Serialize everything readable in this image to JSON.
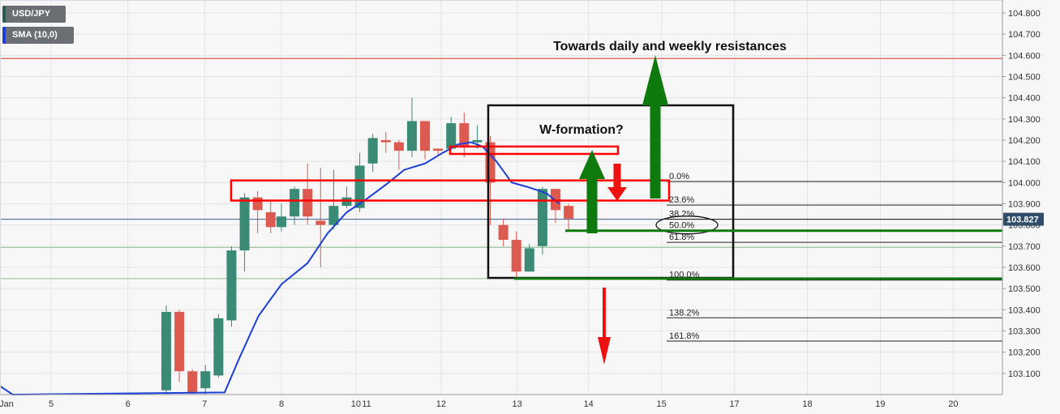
{
  "symbol": "USD/JPY",
  "indicator": "SMA (10,0)",
  "current_price": "103.827",
  "annotations": {
    "resistance_note": "Towards daily and weekly resistances",
    "pattern_note": "W-formation?"
  },
  "colors": {
    "bull": "#3a8a76",
    "bear": "#dc5a50",
    "sma": "#1b3fd6",
    "box_red": "#ff0000",
    "green_arrow": "#0e7a0e",
    "red_arrow": "#ee1111",
    "resistance_line": "#ee5555",
    "price_line": "#3a5a8a"
  },
  "chart_data": {
    "type": "candlestick",
    "title": "",
    "ylim": [
      103.01,
      104.87
    ],
    "y_ticks": [
      103.1,
      103.2,
      103.3,
      103.4,
      103.5,
      103.6,
      103.7,
      103.8,
      103.9,
      104.0,
      104.1,
      104.2,
      104.3,
      104.4,
      104.5,
      104.6,
      104.7,
      104.8
    ],
    "x_ticks": [
      {
        "label": "Jan",
        "day": 3.45
      },
      {
        "label": "5",
        "day": 5
      },
      {
        "label": "6",
        "day": 6
      },
      {
        "label": "7",
        "day": 7
      },
      {
        "label": "8",
        "day": 8
      },
      {
        "label": "10",
        "day": 8.97
      },
      {
        "label": "11",
        "day": 9.11
      },
      {
        "label": "12",
        "day": 10.08
      },
      {
        "label": "13",
        "day": 11.07
      },
      {
        "label": "14",
        "day": 12.0
      },
      {
        "label": "15",
        "day": 12.95
      },
      {
        "label": "17",
        "day": 13.9
      },
      {
        "label": "18",
        "day": 14.85
      },
      {
        "label": "19",
        "day": 15.8
      },
      {
        "label": "20",
        "day": 16.75
      }
    ],
    "candles": [
      {
        "t": 3.6,
        "o": 103.06,
        "h": 103.15,
        "l": 103.05,
        "c": 103.13
      },
      {
        "t": 3.77,
        "o": 103.13,
        "h": 103.18,
        "l": 103.06,
        "c": 103.12
      },
      {
        "t": 3.94,
        "o": 103.12,
        "h": 103.16,
        "l": 103.06,
        "c": 103.14
      },
      {
        "t": 4.12,
        "o": 103.14,
        "h": 103.17,
        "l": 103.0,
        "c": 103.02
      },
      {
        "t": 6.5,
        "o": 103.02,
        "h": 103.42,
        "l": 103.0,
        "c": 103.39
      },
      {
        "t": 6.67,
        "o": 103.39,
        "h": 103.4,
        "l": 103.06,
        "c": 103.11
      },
      {
        "t": 6.84,
        "o": 103.11,
        "h": 103.12,
        "l": 103.0,
        "c": 103.01
      },
      {
        "t": 7.01,
        "o": 103.03,
        "h": 103.14,
        "l": 103.0,
        "c": 103.11
      },
      {
        "t": 7.18,
        "o": 103.09,
        "h": 103.38,
        "l": 103.08,
        "c": 103.36
      },
      {
        "t": 7.35,
        "o": 103.35,
        "h": 103.7,
        "l": 103.32,
        "c": 103.68
      },
      {
        "t": 7.52,
        "o": 103.68,
        "h": 103.95,
        "l": 103.58,
        "c": 103.93
      },
      {
        "t": 7.69,
        "o": 103.93,
        "h": 103.96,
        "l": 103.76,
        "c": 103.87
      },
      {
        "t": 7.86,
        "o": 103.86,
        "h": 103.92,
        "l": 103.76,
        "c": 103.79
      },
      {
        "t": 8.0,
        "o": 103.79,
        "h": 103.9,
        "l": 103.77,
        "c": 103.84
      },
      {
        "t": 8.17,
        "o": 103.84,
        "h": 103.98,
        "l": 103.8,
        "c": 103.97
      },
      {
        "t": 8.34,
        "o": 103.97,
        "h": 104.09,
        "l": 103.8,
        "c": 103.84
      },
      {
        "t": 8.51,
        "o": 103.82,
        "h": 104.07,
        "l": 103.6,
        "c": 103.8
      },
      {
        "t": 8.68,
        "o": 103.8,
        "h": 104.06,
        "l": 103.78,
        "c": 103.89
      },
      {
        "t": 8.85,
        "o": 103.89,
        "h": 103.98,
        "l": 103.88,
        "c": 103.93
      },
      {
        "t": 9.02,
        "o": 103.88,
        "h": 104.14,
        "l": 103.86,
        "c": 104.08
      },
      {
        "t": 9.19,
        "o": 104.09,
        "h": 104.23,
        "l": 104.05,
        "c": 104.21
      },
      {
        "t": 9.36,
        "o": 104.2,
        "h": 104.24,
        "l": 104.14,
        "c": 104.19
      },
      {
        "t": 9.53,
        "o": 104.19,
        "h": 104.2,
        "l": 104.06,
        "c": 104.15
      },
      {
        "t": 9.7,
        "o": 104.15,
        "h": 104.4,
        "l": 104.12,
        "c": 104.29
      },
      {
        "t": 9.87,
        "o": 104.29,
        "h": 104.29,
        "l": 104.11,
        "c": 104.15
      },
      {
        "t": 10.04,
        "o": 104.16,
        "h": 104.16,
        "l": 104.13,
        "c": 104.15
      },
      {
        "t": 10.21,
        "o": 104.16,
        "h": 104.31,
        "l": 104.15,
        "c": 104.28
      },
      {
        "t": 10.38,
        "o": 104.28,
        "h": 104.33,
        "l": 104.12,
        "c": 104.17
      },
      {
        "t": 10.55,
        "o": 104.19,
        "h": 104.27,
        "l": 104.16,
        "c": 104.2
      },
      {
        "t": 10.72,
        "o": 104.19,
        "h": 104.22,
        "l": 103.8,
        "c": 104.0
      },
      {
        "t": 10.89,
        "o": 103.8,
        "h": 103.83,
        "l": 103.7,
        "c": 103.73
      },
      {
        "t": 11.06,
        "o": 103.73,
        "h": 103.77,
        "l": 103.55,
        "c": 103.58
      },
      {
        "t": 11.23,
        "o": 103.58,
        "h": 103.71,
        "l": 103.58,
        "c": 103.69
      },
      {
        "t": 11.4,
        "o": 103.7,
        "h": 103.98,
        "l": 103.66,
        "c": 103.97
      },
      {
        "t": 11.57,
        "o": 103.97,
        "h": 103.97,
        "l": 103.81,
        "c": 103.87
      },
      {
        "t": 11.74,
        "o": 103.89,
        "h": 103.9,
        "l": 103.77,
        "c": 103.83
      }
    ],
    "sma_series": {
      "name": "SMA (10,0)",
      "points": [
        [
          3.5,
          103.16
        ],
        [
          3.9,
          103.13
        ],
        [
          4.25,
          103.06
        ],
        [
          4.5,
          103.0
        ],
        [
          7.26,
          103.01
        ],
        [
          7.45,
          103.17
        ],
        [
          7.7,
          103.37
        ],
        [
          8.0,
          103.52
        ],
        [
          8.34,
          103.62
        ],
        [
          8.6,
          103.76
        ],
        [
          8.85,
          103.86
        ],
        [
          9.1,
          103.92
        ],
        [
          9.36,
          103.99
        ],
        [
          9.6,
          104.06
        ],
        [
          9.87,
          104.09
        ],
        [
          10.1,
          104.14
        ],
        [
          10.3,
          104.18
        ],
        [
          10.47,
          104.19
        ],
        [
          10.62,
          104.17
        ],
        [
          10.8,
          104.1
        ],
        [
          11.0,
          104.0
        ],
        [
          11.2,
          103.98
        ],
        [
          11.45,
          103.95
        ],
        [
          11.62,
          103.9
        ]
      ]
    },
    "fibonacci": [
      {
        "label": "0.0%",
        "price": 104.005
      },
      {
        "label": "23.6%",
        "price": 103.894
      },
      {
        "label": "38.2%",
        "price": 103.827
      },
      {
        "label": "50.0%",
        "price": 103.773
      },
      {
        "label": "61.8%",
        "price": 103.718
      },
      {
        "label": "100.0%",
        "price": 103.54
      },
      {
        "label": "138.2%",
        "price": 103.362
      },
      {
        "label": "161.8%",
        "price": 103.252
      }
    ],
    "resistance_level": 104.585,
    "green_levels": [
      103.694,
      103.547
    ]
  }
}
